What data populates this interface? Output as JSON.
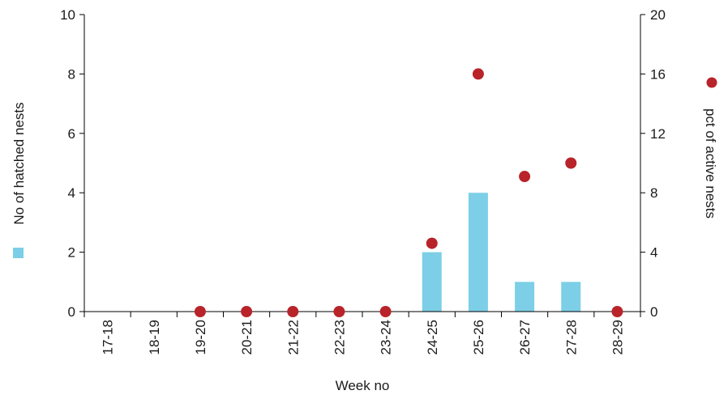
{
  "colors": {
    "bar": "#7ccfe6",
    "dot": "#b8242a",
    "axis": "#000000",
    "background": "#ffffff"
  },
  "chart_data": {
    "type": "bar",
    "categories": [
      "17-18",
      "18-19",
      "19-20",
      "20-21",
      "21-22",
      "22-23",
      "23-24",
      "24-25",
      "25-26",
      "26-27",
      "27-28",
      "28-29"
    ],
    "series": [
      {
        "name": "No of hatched nests",
        "type": "bar",
        "axis": "left",
        "values": [
          0,
          0,
          0,
          0,
          0,
          0,
          0,
          2,
          4,
          1,
          1,
          0
        ]
      },
      {
        "name": "pct of active nests",
        "type": "scatter",
        "axis": "right",
        "values": [
          null,
          null,
          0,
          0,
          0,
          0,
          0,
          4.6,
          16,
          9.1,
          10,
          0
        ]
      }
    ],
    "xlabel": "Week no",
    "ylabel_left": "No of hatched nests",
    "ylabel_right": "pct of active nests",
    "ylim_left": [
      0,
      10
    ],
    "ylim_right": [
      0,
      20
    ],
    "yticks_left": [
      "0",
      "2",
      "4",
      "6",
      "8",
      "10"
    ],
    "yticks_right": [
      "0",
      "4",
      "8",
      "12",
      "16",
      "20"
    ],
    "grid": false,
    "legend": "beside axis titles"
  }
}
